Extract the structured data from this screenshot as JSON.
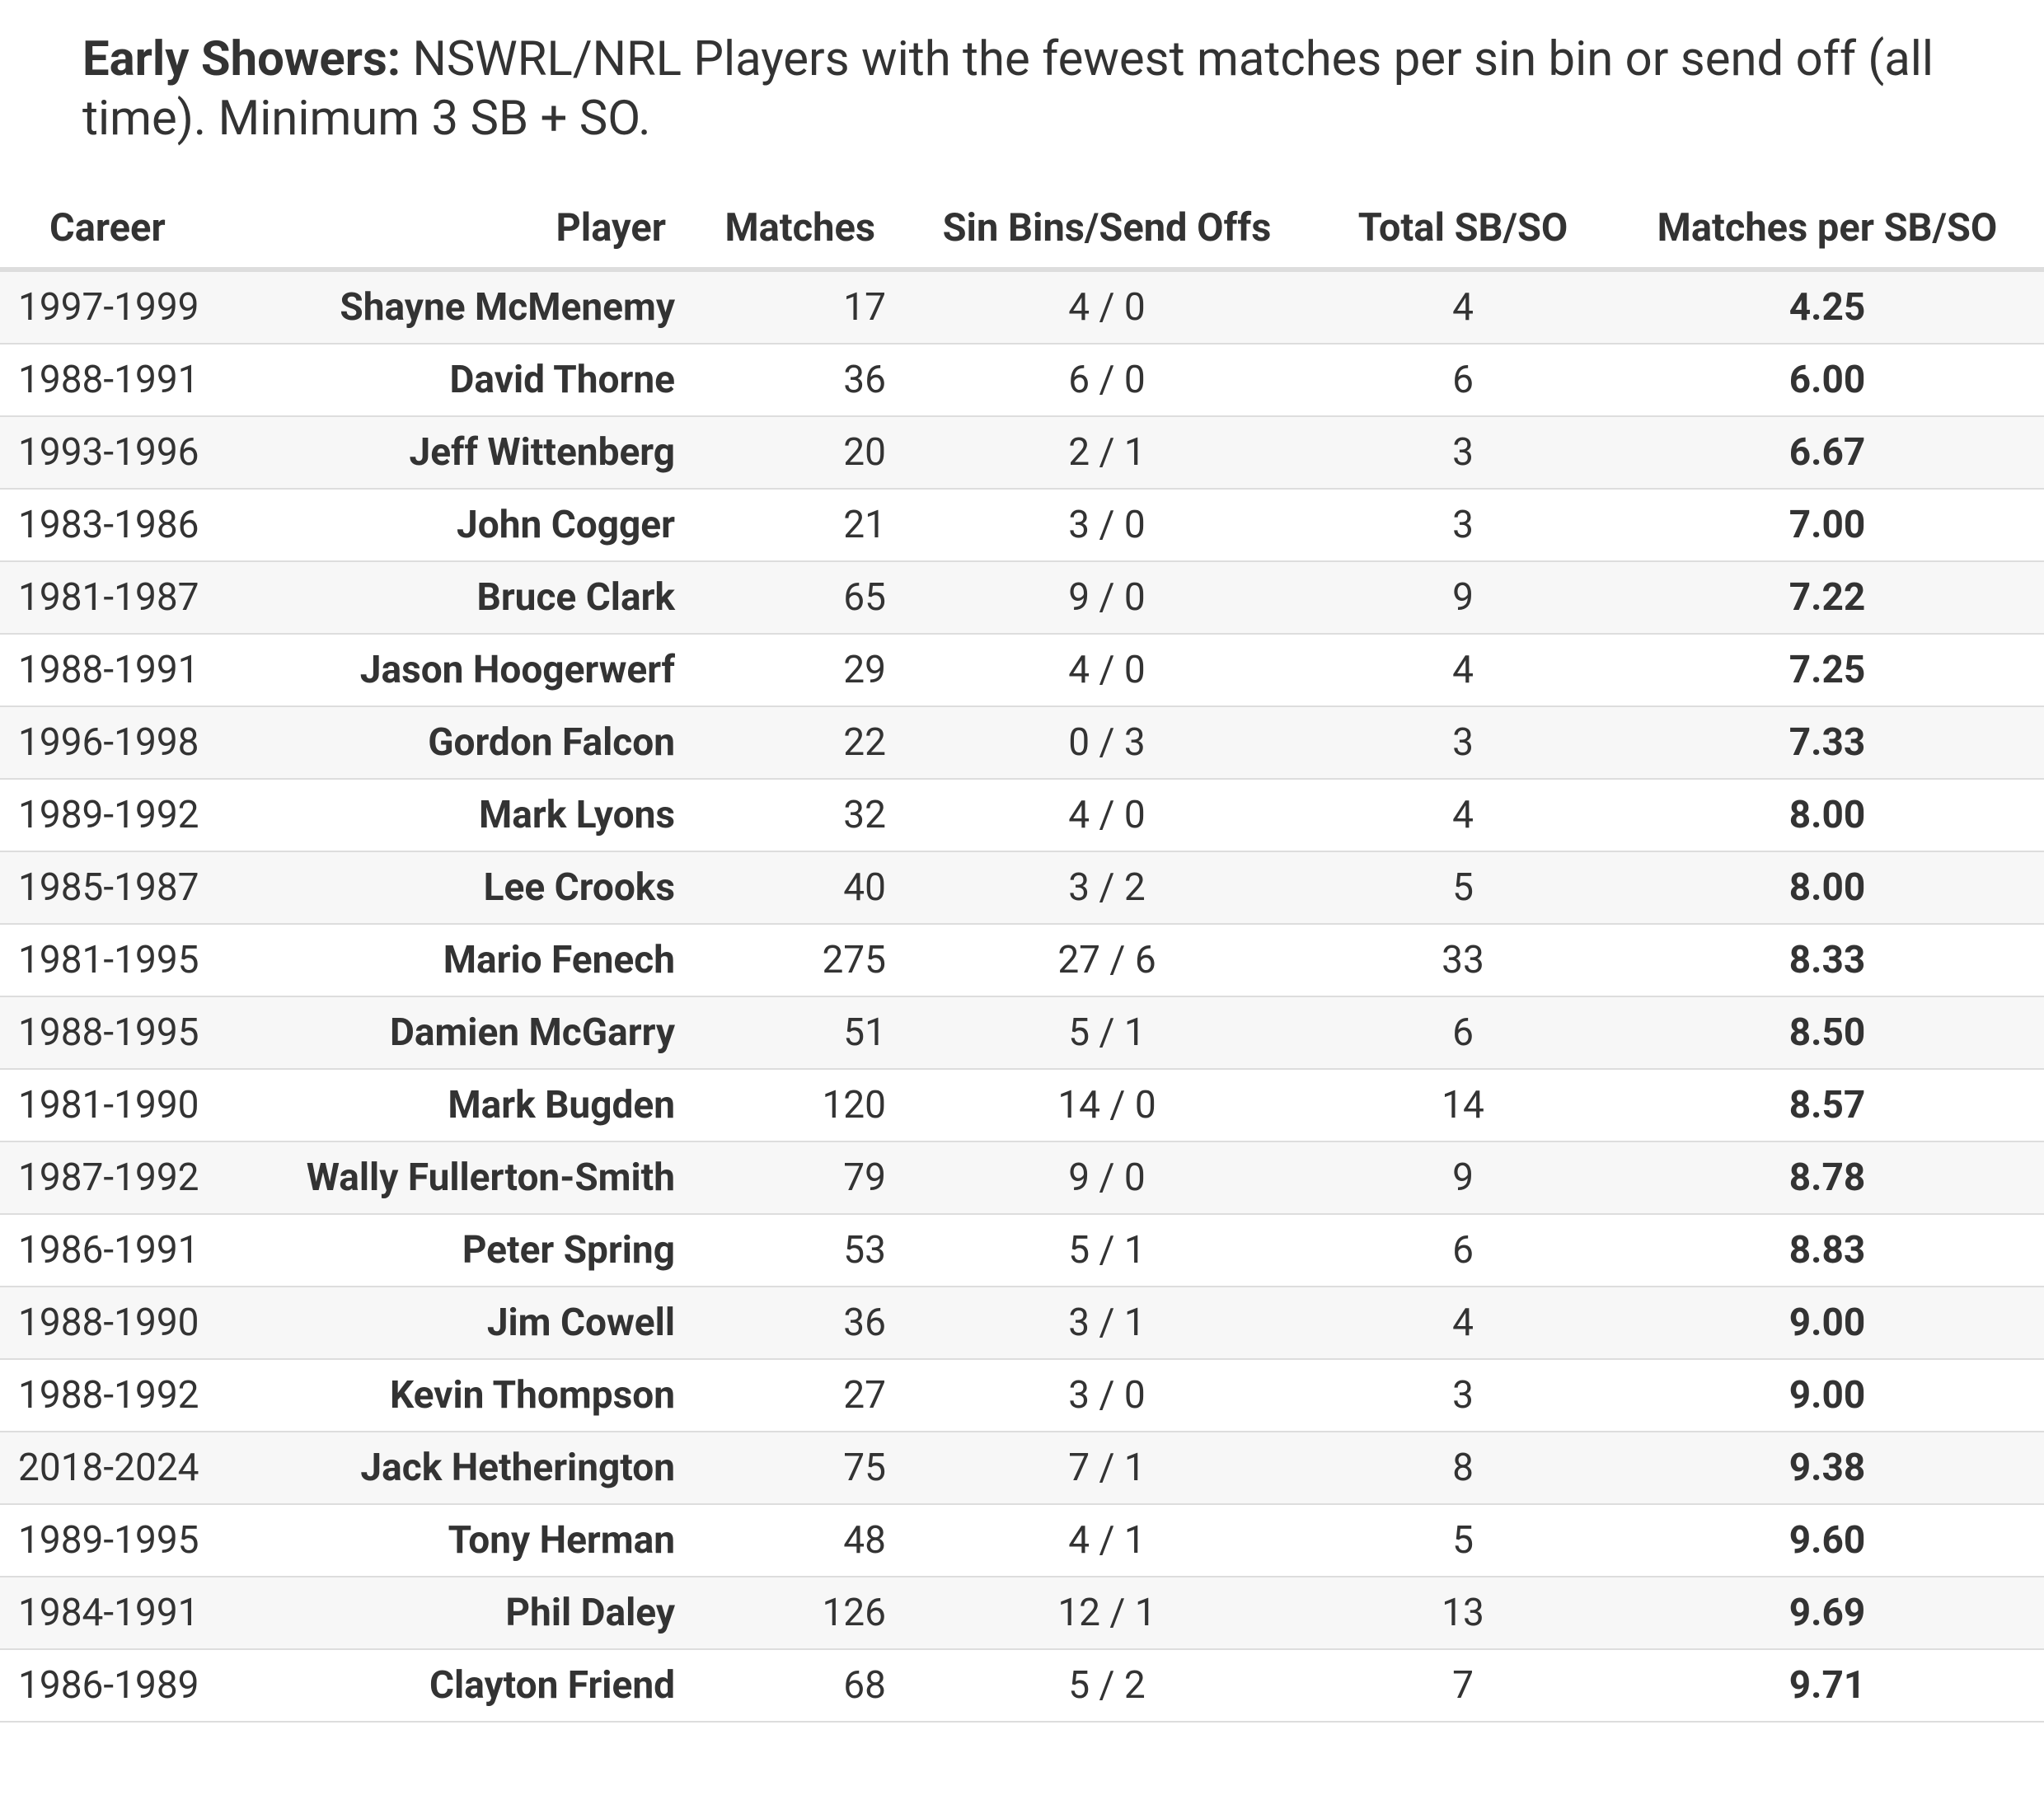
{
  "header": {
    "title_bold": "Early Showers:",
    "title_text": "NSWRL/NRL Players with the fewest matches per sin bin or send off (all time). Minimum 3 SB + SO."
  },
  "table": {
    "columns": [
      "Career",
      "Player",
      "Matches",
      "Sin Bins/Send Offs",
      "Total SB/SO",
      "Matches per SB/SO"
    ],
    "rows": [
      [
        "1997-1999",
        "Shayne McMenemy",
        "17",
        "4 / 0",
        "4",
        "4.25"
      ],
      [
        "1988-1991",
        "David Thorne",
        "36",
        "6 / 0",
        "6",
        "6.00"
      ],
      [
        "1993-1996",
        "Jeff Wittenberg",
        "20",
        "2 / 1",
        "3",
        "6.67"
      ],
      [
        "1983-1986",
        "John Cogger",
        "21",
        "3 / 0",
        "3",
        "7.00"
      ],
      [
        "1981-1987",
        "Bruce Clark",
        "65",
        "9 / 0",
        "9",
        "7.22"
      ],
      [
        "1988-1991",
        "Jason Hoogerwerf",
        "29",
        "4 / 0",
        "4",
        "7.25"
      ],
      [
        "1996-1998",
        "Gordon Falcon",
        "22",
        "0 / 3",
        "3",
        "7.33"
      ],
      [
        "1989-1992",
        "Mark Lyons",
        "32",
        "4 / 0",
        "4",
        "8.00"
      ],
      [
        "1985-1987",
        "Lee Crooks",
        "40",
        "3 / 2",
        "5",
        "8.00"
      ],
      [
        "1981-1995",
        "Mario Fenech",
        "275",
        "27 / 6",
        "33",
        "8.33"
      ],
      [
        "1988-1995",
        "Damien McGarry",
        "51",
        "5 / 1",
        "6",
        "8.50"
      ],
      [
        "1981-1990",
        "Mark Bugden",
        "120",
        "14 / 0",
        "14",
        "8.57"
      ],
      [
        "1987-1992",
        "Wally Fullerton-Smith",
        "79",
        "9 / 0",
        "9",
        "8.78"
      ],
      [
        "1986-1991",
        "Peter Spring",
        "53",
        "5 / 1",
        "6",
        "8.83"
      ],
      [
        "1988-1990",
        "Jim Cowell",
        "36",
        "3 / 1",
        "4",
        "9.00"
      ],
      [
        "1988-1992",
        "Kevin Thompson",
        "27",
        "3 / 0",
        "3",
        "9.00"
      ],
      [
        "2018-2024",
        "Jack Hetherington",
        "75",
        "7 / 1",
        "8",
        "9.38"
      ],
      [
        "1989-1995",
        "Tony Herman",
        "48",
        "4 / 1",
        "5",
        "9.60"
      ],
      [
        "1984-1991",
        "Phil Daley",
        "126",
        "12 / 1",
        "13",
        "9.69"
      ],
      [
        "1986-1989",
        "Clayton Friend",
        "68",
        "5 / 2",
        "7",
        "9.71"
      ]
    ]
  }
}
